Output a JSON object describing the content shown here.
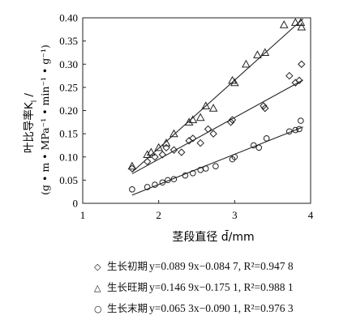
{
  "chart_data": {
    "type": "scatter",
    "xlabel": "茎段直径 d̄/mm",
    "ylabel_line1": "叶比导率K",
    "ylabel_line1_sub": "l",
    "ylabel_line1_end": " /",
    "ylabel_line2": "(g • m • MPa⁻¹ • min⁻¹ • g⁻¹)",
    "xlim": [
      1,
      4
    ],
    "ylim": [
      0,
      0.4
    ],
    "xticks": [
      "1",
      "2",
      "3",
      "4"
    ],
    "yticks": [
      "0",
      "0.05",
      "0.10",
      "0.15",
      "0.20",
      "0.25",
      "0.30",
      "0.35",
      "0.40"
    ],
    "grid": false,
    "legend_placement": "bottom",
    "series": [
      {
        "name": "生长初期",
        "marker": "diamond",
        "equation": "y=0.089 9x−0.084 7, R²=0.947 8",
        "fit": {
          "slope": 0.0899,
          "intercept": -0.0847,
          "x_range": [
            1.65,
            3.9
          ]
        },
        "points": [
          [
            1.65,
            0.075
          ],
          [
            1.85,
            0.09
          ],
          [
            1.95,
            0.1
          ],
          [
            2.05,
            0.105
          ],
          [
            2.1,
            0.12
          ],
          [
            2.2,
            0.115
          ],
          [
            2.3,
            0.11
          ],
          [
            2.4,
            0.135
          ],
          [
            2.45,
            0.14
          ],
          [
            2.55,
            0.13
          ],
          [
            2.65,
            0.16
          ],
          [
            2.72,
            0.15
          ],
          [
            2.95,
            0.175
          ],
          [
            2.97,
            0.18
          ],
          [
            3.38,
            0.21
          ],
          [
            3.4,
            0.205
          ],
          [
            3.72,
            0.275
          ],
          [
            3.8,
            0.26
          ],
          [
            3.85,
            0.265
          ],
          [
            3.88,
            0.3
          ]
        ]
      },
      {
        "name": "生长旺期",
        "marker": "triangle",
        "equation": "y=0.146 9x−0.175 1, R²=0.988 1",
        "fit": {
          "slope": 0.1469,
          "intercept": -0.1751,
          "x_range": [
            1.65,
            3.9
          ]
        },
        "points": [
          [
            1.65,
            0.08
          ],
          [
            1.85,
            0.105
          ],
          [
            1.9,
            0.11
          ],
          [
            2.0,
            0.12
          ],
          [
            2.1,
            0.13
          ],
          [
            2.2,
            0.15
          ],
          [
            2.4,
            0.175
          ],
          [
            2.45,
            0.18
          ],
          [
            2.55,
            0.185
          ],
          [
            2.62,
            0.21
          ],
          [
            2.72,
            0.205
          ],
          [
            2.97,
            0.265
          ],
          [
            3.0,
            0.26
          ],
          [
            3.15,
            0.3
          ],
          [
            3.3,
            0.32
          ],
          [
            3.4,
            0.325
          ],
          [
            3.65,
            0.385
          ],
          [
            3.8,
            0.39
          ],
          [
            3.87,
            0.39
          ],
          [
            3.88,
            0.38
          ]
        ]
      },
      {
        "name": "生长末期",
        "marker": "circle",
        "equation": "y=0.065 3x−0.090 1, R²=0.976 3",
        "fit": {
          "slope": 0.0653,
          "intercept": -0.0901,
          "x_range": [
            1.65,
            3.9
          ]
        },
        "points": [
          [
            1.65,
            0.03
          ],
          [
            1.85,
            0.035
          ],
          [
            1.95,
            0.04
          ],
          [
            2.05,
            0.045
          ],
          [
            2.12,
            0.05
          ],
          [
            2.2,
            0.052
          ],
          [
            2.35,
            0.06
          ],
          [
            2.45,
            0.065
          ],
          [
            2.55,
            0.072
          ],
          [
            2.62,
            0.075
          ],
          [
            2.75,
            0.08
          ],
          [
            2.97,
            0.095
          ],
          [
            3.0,
            0.1
          ],
          [
            3.25,
            0.125
          ],
          [
            3.32,
            0.12
          ],
          [
            3.42,
            0.14
          ],
          [
            3.72,
            0.155
          ],
          [
            3.8,
            0.158
          ],
          [
            3.85,
            0.16
          ],
          [
            3.87,
            0.178
          ]
        ]
      }
    ]
  }
}
